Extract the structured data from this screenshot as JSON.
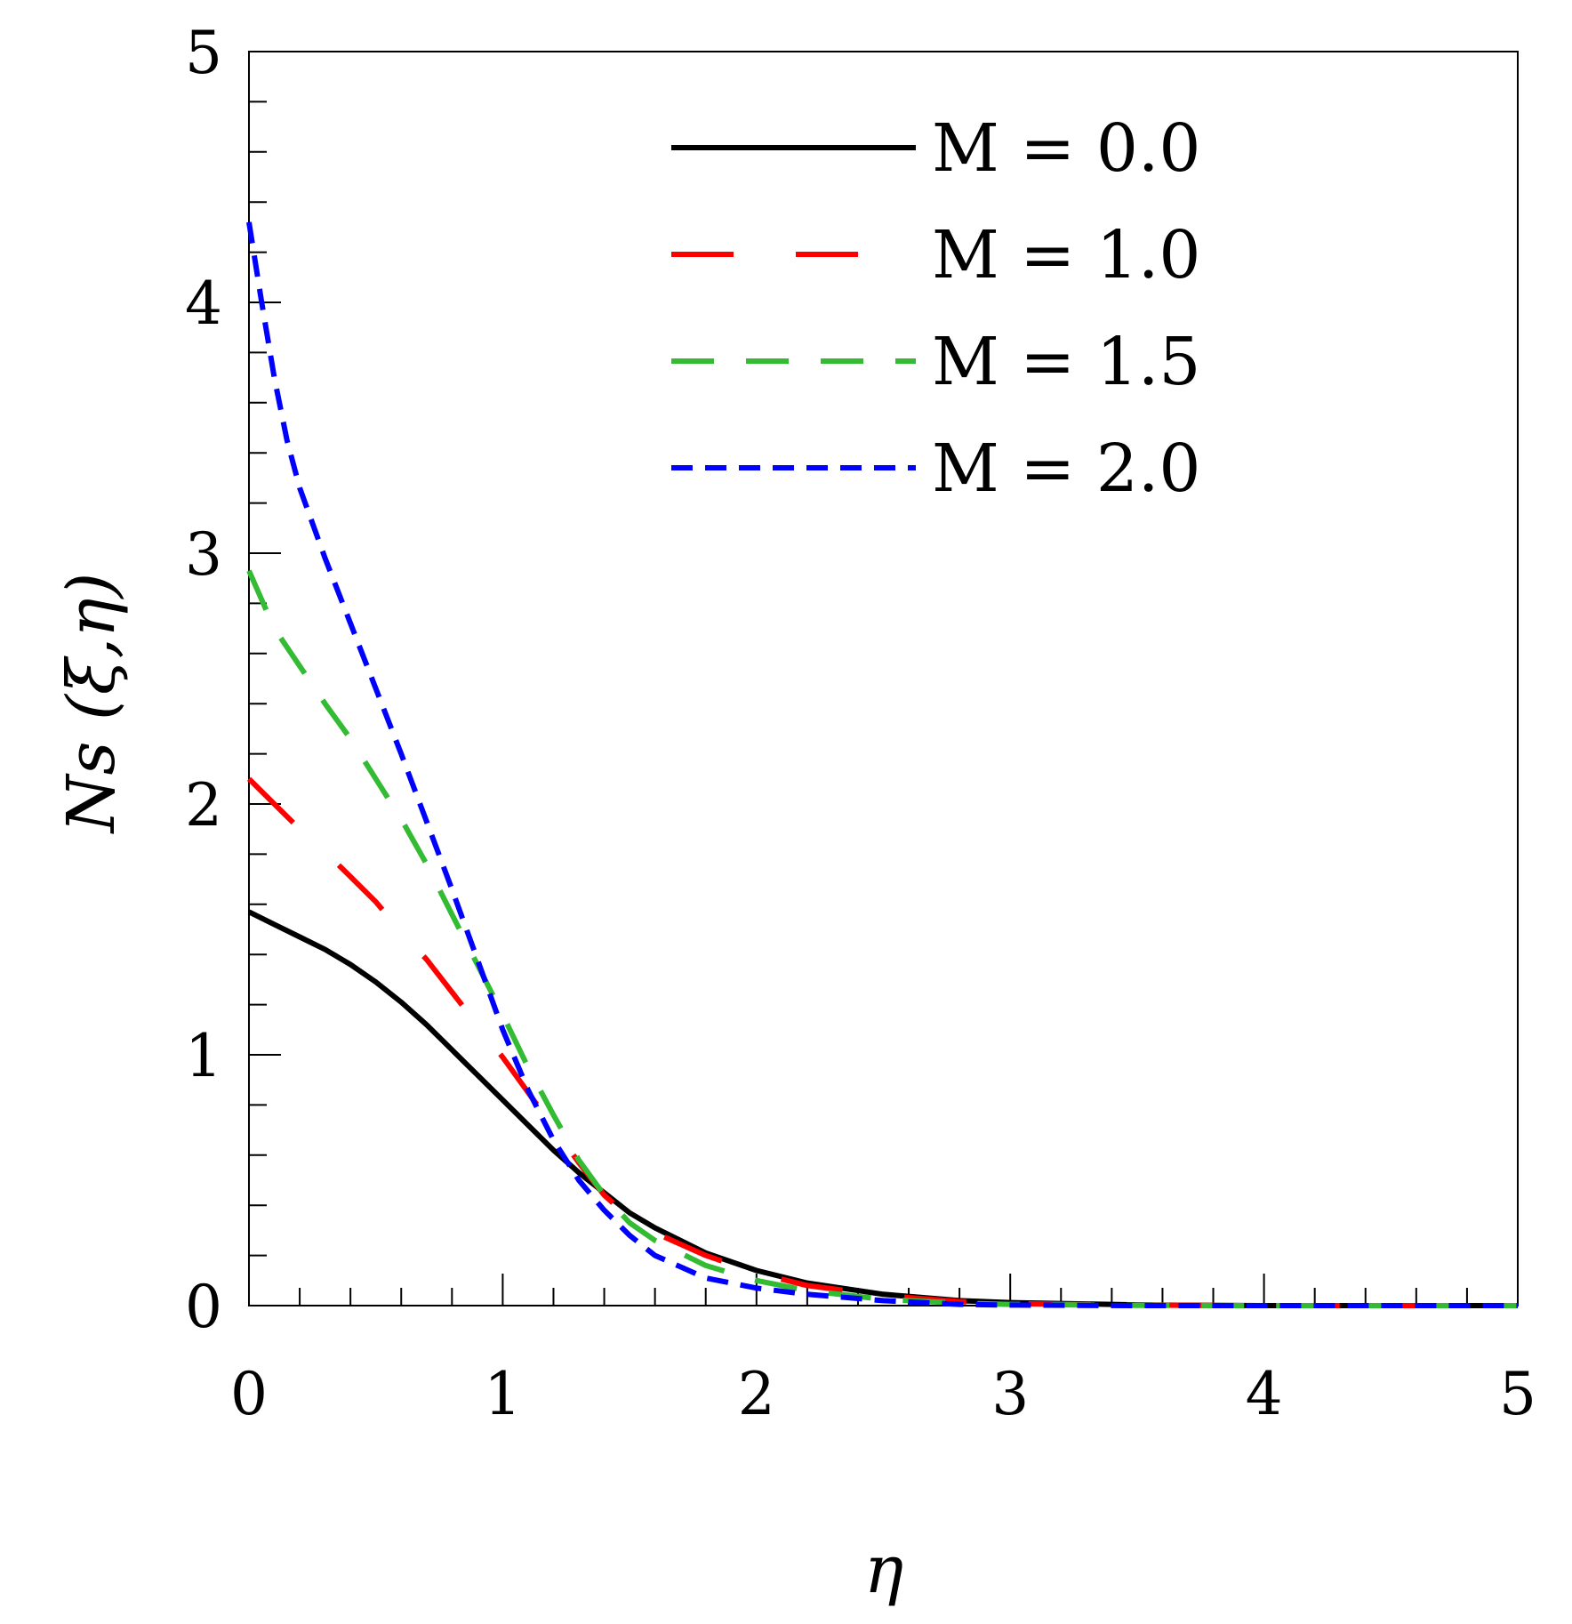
{
  "chart_data": {
    "type": "line",
    "title": "",
    "xlabel": "η",
    "ylabel": "Ns (ξ,η)",
    "xlim": [
      0,
      5
    ],
    "ylim": [
      0,
      5
    ],
    "x_ticks": [
      "0",
      "1",
      "2",
      "3",
      "4",
      "5"
    ],
    "y_ticks": [
      "0",
      "1",
      "2",
      "3",
      "4",
      "5"
    ],
    "grid": false,
    "legend_position": "top-right",
    "series": [
      {
        "name": "M = 0.0",
        "color": "#000000",
        "dash": "solid",
        "points": [
          [
            0,
            1.57
          ],
          [
            0.1,
            1.52
          ],
          [
            0.2,
            1.47
          ],
          [
            0.3,
            1.42
          ],
          [
            0.4,
            1.36
          ],
          [
            0.5,
            1.29
          ],
          [
            0.6,
            1.21
          ],
          [
            0.7,
            1.12
          ],
          [
            0.8,
            1.02
          ],
          [
            0.9,
            0.92
          ],
          [
            1.0,
            0.82
          ],
          [
            1.1,
            0.72
          ],
          [
            1.2,
            0.62
          ],
          [
            1.3,
            0.53
          ],
          [
            1.4,
            0.45
          ],
          [
            1.5,
            0.37
          ],
          [
            1.6,
            0.31
          ],
          [
            1.8,
            0.21
          ],
          [
            2.0,
            0.14
          ],
          [
            2.2,
            0.09
          ],
          [
            2.5,
            0.045
          ],
          [
            2.8,
            0.02
          ],
          [
            3.0,
            0.012
          ],
          [
            3.5,
            0.003
          ],
          [
            4.0,
            0.0
          ],
          [
            5.0,
            0.0
          ]
        ]
      },
      {
        "name": "M = 1.0",
        "color": "#ff0000",
        "dash": "long-dash",
        "points": [
          [
            0,
            2.1
          ],
          [
            0.1,
            2.0
          ],
          [
            0.2,
            1.9
          ],
          [
            0.3,
            1.81
          ],
          [
            0.4,
            1.71
          ],
          [
            0.5,
            1.61
          ],
          [
            0.6,
            1.49
          ],
          [
            0.7,
            1.38
          ],
          [
            0.8,
            1.25
          ],
          [
            0.9,
            1.12
          ],
          [
            1.0,
            0.99
          ],
          [
            1.1,
            0.85
          ],
          [
            1.2,
            0.71
          ],
          [
            1.3,
            0.57
          ],
          [
            1.4,
            0.44
          ],
          [
            1.5,
            0.35
          ],
          [
            1.6,
            0.29
          ],
          [
            1.8,
            0.2
          ],
          [
            2.0,
            0.13
          ],
          [
            2.2,
            0.08
          ],
          [
            2.5,
            0.04
          ],
          [
            2.8,
            0.016
          ],
          [
            3.0,
            0.008
          ],
          [
            3.5,
            0.002
          ],
          [
            4.0,
            0.0
          ],
          [
            5.0,
            0.0
          ]
        ]
      },
      {
        "name": "M = 1.5",
        "color": "#33bb33",
        "dash": "dash",
        "points": [
          [
            0,
            2.93
          ],
          [
            0.1,
            2.7
          ],
          [
            0.2,
            2.55
          ],
          [
            0.3,
            2.4
          ],
          [
            0.4,
            2.26
          ],
          [
            0.5,
            2.1
          ],
          [
            0.6,
            1.94
          ],
          [
            0.7,
            1.76
          ],
          [
            0.8,
            1.56
          ],
          [
            0.9,
            1.36
          ],
          [
            1.0,
            1.16
          ],
          [
            1.1,
            0.95
          ],
          [
            1.2,
            0.76
          ],
          [
            1.3,
            0.58
          ],
          [
            1.4,
            0.44
          ],
          [
            1.5,
            0.33
          ],
          [
            1.6,
            0.26
          ],
          [
            1.8,
            0.16
          ],
          [
            2.0,
            0.1
          ],
          [
            2.2,
            0.06
          ],
          [
            2.5,
            0.025
          ],
          [
            2.8,
            0.01
          ],
          [
            3.0,
            0.005
          ],
          [
            3.5,
            0.001
          ],
          [
            4.0,
            0.0
          ],
          [
            5.0,
            0.0
          ]
        ]
      },
      {
        "name": "M = 2.0",
        "color": "#0000ff",
        "dash": "short-dash",
        "points": [
          [
            0,
            4.32
          ],
          [
            0.05,
            4.0
          ],
          [
            0.1,
            3.7
          ],
          [
            0.15,
            3.45
          ],
          [
            0.2,
            3.26
          ],
          [
            0.3,
            2.98
          ],
          [
            0.4,
            2.72
          ],
          [
            0.5,
            2.46
          ],
          [
            0.6,
            2.2
          ],
          [
            0.7,
            1.93
          ],
          [
            0.8,
            1.66
          ],
          [
            0.9,
            1.38
          ],
          [
            1.0,
            1.1
          ],
          [
            1.1,
            0.86
          ],
          [
            1.2,
            0.66
          ],
          [
            1.3,
            0.5
          ],
          [
            1.4,
            0.38
          ],
          [
            1.5,
            0.28
          ],
          [
            1.6,
            0.2
          ],
          [
            1.8,
            0.11
          ],
          [
            2.0,
            0.07
          ],
          [
            2.2,
            0.045
          ],
          [
            2.5,
            0.02
          ],
          [
            2.8,
            0.005
          ],
          [
            3.0,
            0.002
          ],
          [
            3.5,
            0.0
          ],
          [
            5.0,
            0.0
          ]
        ]
      }
    ]
  }
}
